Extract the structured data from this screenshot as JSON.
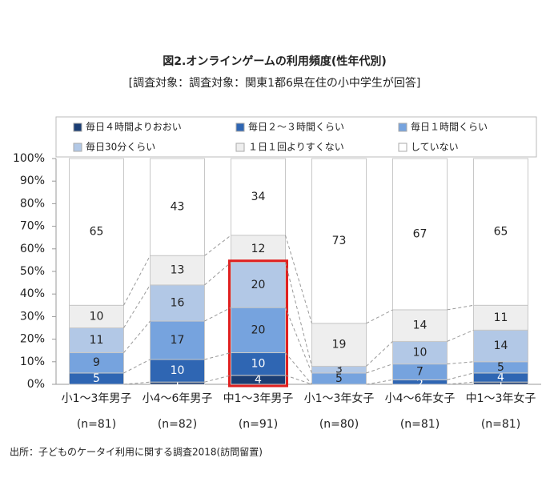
{
  "chart_data": {
    "type": "stacked_bar",
    "title": "図2.オンラインゲームの利用頻度(性年代別)",
    "subtitle": "[調査対象：調査対象：関東1都6県在住の小中学生が回答]",
    "source": "出所：子どものケータイ利用に関する調査2018(訪問留置)",
    "categories": [
      "小1～3年男子",
      "小4～6年男子",
      "中1～3年男子",
      "小1～3年女子",
      "小4～6年女子",
      "中1～3年女子"
    ],
    "sample_sizes": [
      "(n=81)",
      "(n=82)",
      "(n=91)",
      "(n=80)",
      "(n=81)",
      "(n=81)"
    ],
    "series": [
      {
        "name": "毎日４時間よりおおい",
        "color": "#1b3d73",
        "values": [
          0,
          1,
          4,
          0,
          0,
          1
        ]
      },
      {
        "name": "毎日２～３時間くらい",
        "color": "#2f66b3",
        "values": [
          5,
          10,
          10,
          0,
          2,
          4
        ]
      },
      {
        "name": "毎日１時間くらい",
        "color": "#76a3de",
        "values": [
          9,
          17,
          20,
          5,
          7,
          5
        ]
      },
      {
        "name": "毎日30分くらい",
        "color": "#b2c8e6",
        "values": [
          11,
          16,
          20,
          3,
          10,
          14
        ]
      },
      {
        "name": "１日１回よりすくない",
        "color": "#eeeeee",
        "values": [
          10,
          13,
          12,
          19,
          14,
          11
        ]
      },
      {
        "name": "していない",
        "color": "#ffffff",
        "values": [
          65,
          43,
          34,
          73,
          67,
          65
        ]
      }
    ],
    "ylim": [
      0,
      100
    ],
    "yticks": [
      {
        "value": 0,
        "label": "0%"
      },
      {
        "value": 10,
        "label": "10%"
      },
      {
        "value": 20,
        "label": "20%"
      },
      {
        "value": 30,
        "label": "30%"
      },
      {
        "value": 40,
        "label": "40%"
      },
      {
        "value": 50,
        "label": "50%"
      },
      {
        "value": 60,
        "label": "60%"
      },
      {
        "value": 70,
        "label": "70%"
      },
      {
        "value": 80,
        "label": "80%"
      },
      {
        "value": 90,
        "label": "90%"
      },
      {
        "value": 100,
        "label": "100%"
      }
    ],
    "highlight_category": 2,
    "highlight_color": "#e02020"
  }
}
